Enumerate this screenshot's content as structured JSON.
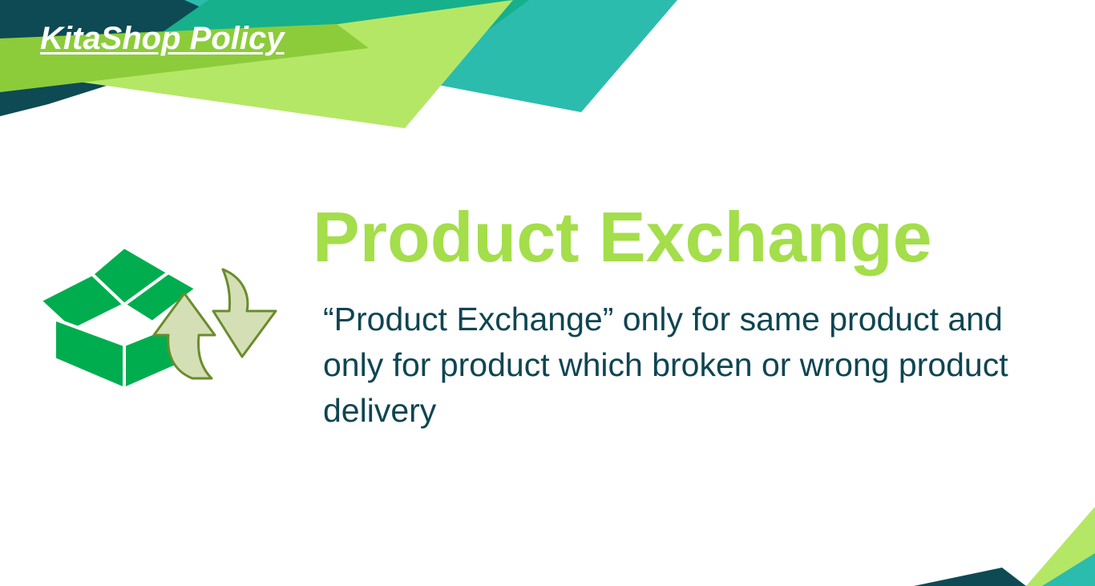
{
  "header": {
    "title": "KitaShop Policy"
  },
  "main": {
    "heading": "Product Exchange",
    "body": "“Product Exchange” only for same product and only for product which broken or wrong product delivery"
  },
  "graphic": {
    "icons": [
      "box-icon",
      "arrow-up-icon",
      "arrow-down-icon"
    ]
  },
  "colors": {
    "accent_green": "#a4de4a",
    "dark_teal": "#0f4552",
    "teal": "#2bbcae",
    "box_green": "#00ad4e",
    "arrow_fill": "#d5dfb6",
    "arrow_stroke": "#6a8c2c"
  }
}
